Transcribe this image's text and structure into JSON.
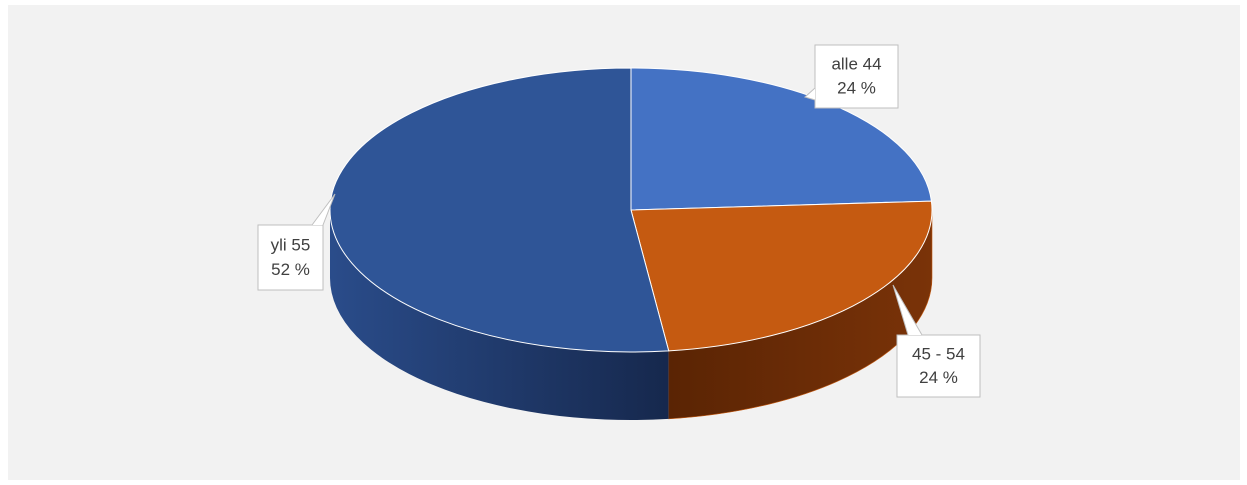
{
  "chart_data": {
    "type": "pie",
    "categories": [
      "alle 44",
      "45 - 54",
      "yli 55"
    ],
    "values": [
      24,
      24,
      52
    ],
    "value_labels": [
      "24 %",
      "24 %",
      "52 %"
    ],
    "colors": [
      "#4472c4",
      "#c55a11",
      "#2f5597"
    ]
  }
}
